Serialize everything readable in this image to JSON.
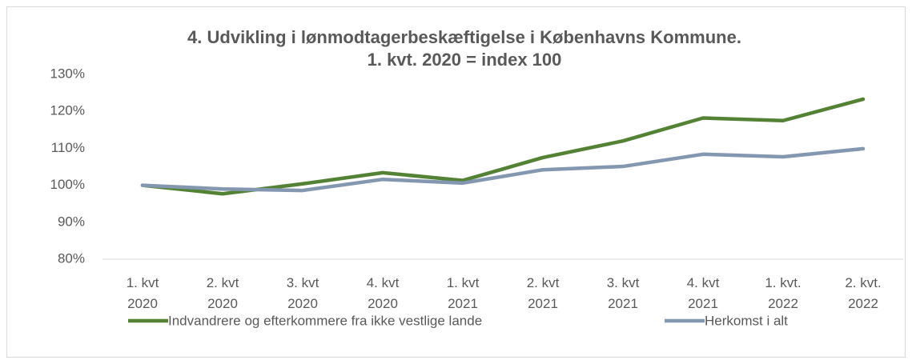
{
  "chart_data": {
    "type": "line",
    "title": "4. Udvikling i lønmodtagerbeskæftigelse i Københavns Kommune.",
    "subtitle": "1. kvt. 2020 = index 100",
    "categories": [
      "1. kvt 2020",
      "2. kvt 2020",
      "3. kvt 2020",
      "4. kvt 2020",
      "1. kvt 2021",
      "2. kvt 2021",
      "3. kvt 2021",
      "4. kvt 2021",
      "1. kvt. 2022",
      "2. kvt. 2022"
    ],
    "series": [
      {
        "name": "Indvandrere og efterkommere fra ikke vestlige lande",
        "color": "#548235",
        "values": [
          100,
          97.7,
          100.4,
          103.4,
          101.3,
          107.5,
          112,
          118.2,
          117.5,
          123.3
        ]
      },
      {
        "name": "Herkomst i alt",
        "color": "#8497b0",
        "values": [
          100,
          99,
          98.6,
          101.6,
          100.6,
          104.2,
          105.1,
          108.4,
          107.7,
          109.9
        ]
      }
    ],
    "ylim": [
      80,
      130
    ],
    "yticks": [
      {
        "value": 80,
        "label": "80%"
      },
      {
        "value": 90,
        "label": "90%"
      },
      {
        "value": 100,
        "label": "100%"
      },
      {
        "value": 110,
        "label": "110%"
      },
      {
        "value": 120,
        "label": "120%"
      },
      {
        "value": 130,
        "label": "130%"
      }
    ],
    "grid": false,
    "legend": "bottom"
  }
}
